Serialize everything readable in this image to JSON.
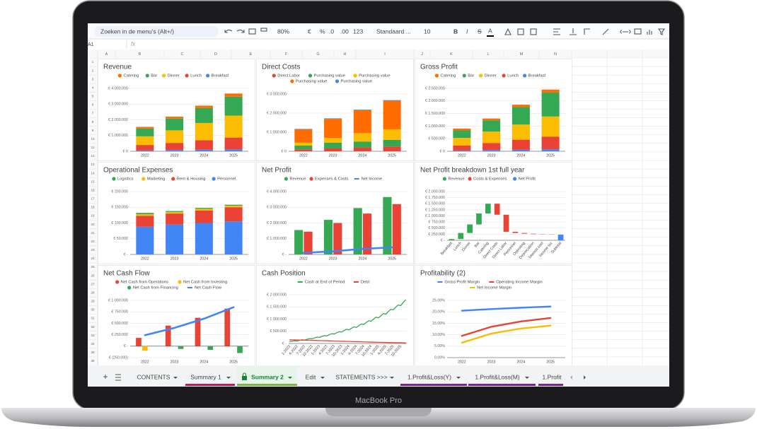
{
  "laptop_label": "MacBook Pro",
  "toolbar": {
    "search": "Zoeken in de menu's (Alt+/)",
    "zoom": "80%",
    "currency": "€",
    "percent": "%",
    "decrease_decimals": ".0",
    "increase_decimals": ".00",
    "number_format": "123",
    "font": "Standaard ...",
    "font_size": "10",
    "bold": "B",
    "italic": "I",
    "strikethrough": "S",
    "text_color": "A"
  },
  "formula_bar": {
    "cell": "A1",
    "icon": "fx"
  },
  "column_headers": [
    "A",
    "B",
    "C",
    "D",
    "E",
    "F",
    "G",
    "H",
    "I",
    "J",
    "K",
    "L",
    "M",
    "N"
  ],
  "row_numbers": [
    1,
    2,
    3,
    4,
    5,
    6,
    7,
    8,
    9,
    10,
    11,
    12,
    13,
    14,
    15,
    16,
    17,
    18,
    19,
    20,
    21,
    22,
    23,
    24,
    25,
    26,
    27,
    28,
    29,
    30,
    31,
    32,
    33,
    34,
    35,
    36
  ],
  "sheet_tabs": {
    "add": "+",
    "tabs": [
      "CONTENTS",
      "Summary 1",
      "Summary 2",
      "Edit",
      "STATEMENTS >>>",
      "1.Profit&Loss(Y)",
      "1.Profit&Loss(M)",
      "1.Profit"
    ]
  },
  "chart_data": [
    {
      "type": "stacked_bar",
      "title": "Revenue",
      "stack_reversed": true,
      "categories": [
        "2022",
        "2023",
        "2024",
        "2025"
      ],
      "series": [
        {
          "name": "Catering",
          "color": "#ff6d01",
          "values": [
            100000,
            120000,
            150000,
            200000
          ]
        },
        {
          "name": "Bar",
          "color": "#34a853",
          "values": [
            500000,
            750000,
            950000,
            1200000
          ]
        },
        {
          "name": "Dinner",
          "color": "#fbbc04",
          "values": [
            550000,
            800000,
            1100000,
            1400000
          ]
        },
        {
          "name": "Lunch",
          "color": "#ea4335",
          "values": [
            350000,
            450000,
            600000,
            750000
          ]
        },
        {
          "name": "Breakfast",
          "color": "#4285f4",
          "values": [
            50000,
            80000,
            100000,
            120000
          ]
        }
      ],
      "ylim": [
        0,
        4000000
      ],
      "yticks": [
        {
          "value": 0,
          "label": "€ 0"
        },
        {
          "value": 1000000,
          "label": "€ 1.000.000"
        },
        {
          "value": 2000000,
          "label": "€ 2.000.000"
        },
        {
          "value": 3000000,
          "label": "€ 3.000.000"
        },
        {
          "value": 4000000,
          "label": "€ 4.000.000"
        }
      ],
      "grid": true
    },
    {
      "type": "stacked_bar",
      "title": "Direct Costs",
      "categories": [
        "2022",
        "2023",
        "2024",
        "2025"
      ],
      "series": [
        {
          "name": "Direct Labor",
          "color": "#ea4335",
          "values": [
            100000,
            150000,
            200000,
            250000
          ]
        },
        {
          "name": "Purchasing value",
          "color": "#34a853",
          "values": [
            200000,
            300000,
            300000,
            350000
          ]
        },
        {
          "name": "Purchasing value",
          "color": "#fbbc04",
          "values": [
            150000,
            250000,
            450000,
            550000
          ]
        },
        {
          "name": "Purchasing value",
          "color": "#ff6d01",
          "values": [
            700000,
            1000000,
            1200000,
            1500000
          ]
        },
        {
          "name": "Purchasing value",
          "color": "#4285f4",
          "values": [
            20000,
            25000,
            30000,
            30000
          ]
        }
      ],
      "ylim": [
        0,
        3000000
      ],
      "yticks": [
        {
          "value": 0,
          "label": "€ 0"
        },
        {
          "value": 1000000,
          "label": "€ 1.000.000"
        },
        {
          "value": 2000000,
          "label": "€ 2.000.000"
        },
        {
          "value": 3000000,
          "label": "€ 3.000.000"
        }
      ],
      "grid": true
    },
    {
      "type": "stacked_bar",
      "title": "Gross Profit",
      "stack_reversed": true,
      "categories": [
        "2022",
        "2023",
        "2024",
        "2025"
      ],
      "series": [
        {
          "name": "Catering",
          "color": "#ff6d01",
          "values": [
            70000,
            70000,
            90000,
            120000
          ]
        },
        {
          "name": "Bar",
          "color": "#34a853",
          "values": [
            300000,
            450000,
            700000,
            950000
          ]
        },
        {
          "name": "Dinner",
          "color": "#fbbc04",
          "values": [
            300000,
            450000,
            600000,
            800000
          ]
        },
        {
          "name": "Lunch",
          "color": "#ea4335",
          "values": [
            200000,
            280000,
            400000,
            500000
          ]
        },
        {
          "name": "Breakfast",
          "color": "#4285f4",
          "values": [
            30000,
            50000,
            60000,
            80000
          ]
        }
      ],
      "ylim": [
        0,
        2500000
      ],
      "yticks": [
        {
          "value": 0,
          "label": "€ 0"
        },
        {
          "value": 500000,
          "label": "€ 500.000"
        },
        {
          "value": 1000000,
          "label": "€ 1.000.000"
        },
        {
          "value": 1500000,
          "label": "€ 1.500.000"
        },
        {
          "value": 2000000,
          "label": "€ 2.000.000"
        },
        {
          "value": 2500000,
          "label": "€ 2.500.000"
        }
      ],
      "grid": true
    },
    {
      "type": "stacked_bar",
      "title": "Operational Expenses",
      "stack_reversed": true,
      "categories": [
        "2022",
        "2023",
        "2024",
        "2025"
      ],
      "series": [
        {
          "name": "Logistics",
          "color": "#34a853",
          "values": [
            4000,
            3000,
            3000,
            3000
          ]
        },
        {
          "name": "Marketing",
          "color": "#fbbc04",
          "values": [
            5000,
            5000,
            5000,
            5000
          ]
        },
        {
          "name": "Rent & Housing",
          "color": "#ea4335",
          "values": [
            35000,
            35000,
            40000,
            45000
          ]
        },
        {
          "name": "Personnel",
          "color": "#4285f4",
          "values": [
            88000,
            95000,
            100000,
            105000
          ]
        }
      ],
      "ylim": [
        0,
        200000
      ],
      "yticks": [
        {
          "value": 0,
          "label": "€ -"
        },
        {
          "value": 50000,
          "label": "€ 50.000"
        },
        {
          "value": 100000,
          "label": "€ 100.000"
        },
        {
          "value": 150000,
          "label": "€ 150.000"
        },
        {
          "value": 200000,
          "label": "€ 200.000"
        }
      ],
      "grid": true
    },
    {
      "type": "combo",
      "title": "Net Profit",
      "categories": [
        "2022",
        "2023",
        "2024",
        "2025"
      ],
      "series": [
        {
          "name": "Revenue",
          "color": "#34a853",
          "kind": "bar",
          "values": [
            1550000,
            2200000,
            2950000,
            3650000
          ]
        },
        {
          "name": "Expenses & Costs",
          "color": "#ea4335",
          "kind": "bar",
          "values": [
            1450000,
            2000000,
            2600000,
            3200000
          ]
        },
        {
          "name": "Net Income",
          "color": "#4285f4",
          "kind": "line",
          "values": [
            100000,
            200000,
            350000,
            450000
          ]
        }
      ],
      "ylim": [
        0,
        4000000
      ],
      "yticks": [
        {
          "value": 0,
          "label": "€ -"
        },
        {
          "value": 1000000,
          "label": "€ 1.000.000"
        },
        {
          "value": 2000000,
          "label": "€ 2.000.000"
        },
        {
          "value": 3000000,
          "label": "€ 3.000.000"
        },
        {
          "value": 4000000,
          "label": "€ 4.000.000"
        }
      ],
      "grid": true
    },
    {
      "type": "waterfall",
      "title": "Net Profit breakdown 1st full year",
      "categories": [
        "Breakfast",
        "Lunch",
        "Dinner",
        "Bar",
        "Catering",
        "Direct Costs",
        "Direct Labor",
        "Personnel",
        "Operating",
        "Depreciation",
        "Interest cost",
        "Income tax",
        "Subtotal"
      ],
      "series": [
        {
          "name": "Revenue",
          "color": "#34a853",
          "kind": "delta",
          "values": [
            50000,
            250000,
            350000,
            450000,
            400000,
            null,
            null,
            null,
            null,
            null,
            null,
            null,
            null
          ]
        },
        {
          "name": "Costs & Expenses",
          "color": "#ea4335",
          "kind": "delta",
          "values": [
            null,
            null,
            null,
            null,
            null,
            -450000,
            -700000,
            -50000,
            -30000,
            -20000,
            -10000,
            -10000,
            null
          ]
        },
        {
          "name": "Net Profit",
          "color": "#4285f4",
          "kind": "total",
          "values": [
            null,
            null,
            null,
            null,
            null,
            null,
            null,
            null,
            null,
            null,
            null,
            null,
            230000
          ]
        }
      ],
      "ylim": [
        0,
        2000000
      ],
      "yticks": [
        {
          "value": 0,
          "label": "€ -"
        },
        {
          "value": 250000,
          "label": "€ 250.000"
        },
        {
          "value": 500000,
          "label": "€ 500.000"
        },
        {
          "value": 750000,
          "label": "€ 750.000"
        },
        {
          "value": 1000000,
          "label": "€ 1.000.000"
        },
        {
          "value": 1250000,
          "label": "€ 1.250.000"
        },
        {
          "value": 1500000,
          "label": "€ 1.500.000"
        },
        {
          "value": 1750000,
          "label": "€ 1.750.000"
        },
        {
          "value": 2000000,
          "label": "€ 2.000.000"
        }
      ],
      "grid": true
    },
    {
      "type": "combo",
      "title": "Net Cash Flow",
      "categories": [
        "2022",
        "2023",
        "2024",
        "2025"
      ],
      "series": [
        {
          "name": "Net Cash from Operations",
          "color": "#ea4335",
          "kind": "bar",
          "values": [
            180000,
            450000,
            620000,
            820000
          ]
        },
        {
          "name": "Net Cash from Investing",
          "color": "#fbbc04",
          "kind": "bar",
          "values": [
            -100000,
            0,
            0,
            0
          ]
        },
        {
          "name": "Net Cash from Financing",
          "color": "#34a853",
          "kind": "bar",
          "values": [
            0,
            -60000,
            -80000,
            -150000
          ]
        },
        {
          "name": "Net Cash Flow",
          "color": "#4285f4",
          "kind": "line",
          "values": [
            240000,
            400000,
            600000,
            850000
          ]
        }
      ],
      "ylim": [
        -250000,
        1000000
      ],
      "yticks": [
        {
          "value": -250000,
          "label": "€ (250.000)"
        },
        {
          "value": 0,
          "label": "€ -"
        },
        {
          "value": 250000,
          "label": "€ 250.000"
        },
        {
          "value": 500000,
          "label": "€ 500.000"
        },
        {
          "value": 750000,
          "label": "€ 750.000"
        },
        {
          "value": 1000000,
          "label": "€ 1.000.000"
        }
      ],
      "grid": true
    },
    {
      "type": "line",
      "title": "Cash Position",
      "categories": [
        "1-2022",
        null,
        null,
        "4-2022",
        null,
        null,
        "7-2022",
        null,
        null,
        "10-2022",
        null,
        null,
        "1-2023",
        null,
        null,
        "4-2023",
        null,
        null,
        "7-2023",
        null,
        null,
        "10-2023",
        null,
        null,
        "1-2024",
        null,
        null,
        "4-2024",
        null,
        null,
        "7-2024",
        null,
        null,
        "10-2024",
        null,
        null,
        "1-2025",
        null,
        null,
        "4-2025",
        null,
        null,
        "7-2025",
        null,
        null,
        "10-2025",
        null,
        null
      ],
      "series": [
        {
          "name": "Cash at End of Period",
          "color": "#34a853",
          "values": [
            80000,
            95000,
            110000,
            100000,
            130000,
            150000,
            140000,
            170000,
            200000,
            190000,
            230000,
            260000,
            250000,
            290000,
            320000,
            310000,
            360000,
            400000,
            390000,
            440000,
            480000,
            470000,
            530000,
            580000,
            560000,
            620000,
            680000,
            660000,
            730000,
            800000,
            780000,
            860000,
            930000,
            910000,
            1000000,
            1080000,
            1050000,
            1140000,
            1230000,
            1200000,
            1310000,
            1400000,
            1380000,
            1490000,
            1580000,
            1550000,
            1680000,
            1780000
          ]
        },
        {
          "name": "Debt",
          "color": "#ea4335",
          "values": [
            150000,
            148000,
            146000,
            144000,
            142000,
            140000,
            137000,
            134000,
            131000,
            128000,
            125000,
            122000,
            119000,
            116000,
            113000,
            110000,
            107000,
            104000,
            101000,
            98000,
            95000,
            92000,
            89000,
            86000,
            83000,
            80000,
            77000,
            74000,
            71000,
            68000,
            65000,
            62000,
            59000,
            56000,
            53000,
            50000,
            48000,
            46000,
            44000,
            42000,
            40000,
            38000,
            36000,
            34000,
            32000,
            30000,
            28000,
            26000
          ]
        }
      ],
      "ylim": [
        0,
        2000000
      ],
      "yticks": [
        {
          "value": 0,
          "label": "€ -"
        },
        {
          "value": 500000,
          "label": "€ 500.000"
        },
        {
          "value": 1000000,
          "label": "€ 1.000.000"
        },
        {
          "value": 1500000,
          "label": "€ 1.500.000"
        },
        {
          "value": 2000000,
          "label": "€ 2.000.000"
        }
      ],
      "grid": true
    },
    {
      "type": "line",
      "title": "Profitability (2)",
      "categories": [
        "2022",
        "2023",
        "2024",
        "2025"
      ],
      "series": [
        {
          "name": "Gross Profit Margin",
          "color": "#4285f4",
          "values": [
            20.5,
            21.2,
            21.8,
            22.3
          ]
        },
        {
          "name": "Operating Income Margin",
          "color": "#ea4335",
          "values": [
            9.5,
            13.5,
            15.8,
            17.3
          ]
        },
        {
          "name": "Net Income Margin",
          "color": "#fbbc04",
          "values": [
            6.5,
            10.5,
            12.7,
            14.0
          ]
        }
      ],
      "ylim": [
        0,
        25
      ],
      "yticks": [
        {
          "value": 0,
          "label": "0.00%"
        },
        {
          "value": 5,
          "label": "5.00%"
        },
        {
          "value": 10,
          "label": "10.00%"
        },
        {
          "value": 15,
          "label": "15.00%"
        },
        {
          "value": 20,
          "label": "20.00%"
        },
        {
          "value": 25,
          "label": "25.00%"
        }
      ],
      "grid": true
    }
  ]
}
